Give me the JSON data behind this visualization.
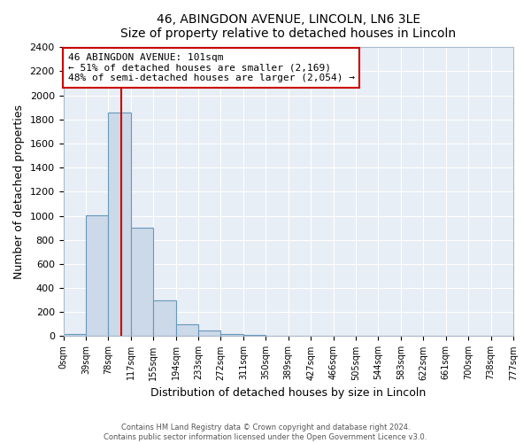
{
  "title": "46, ABINGDON AVENUE, LINCOLN, LN6 3LE",
  "subtitle": "Size of property relative to detached houses in Lincoln",
  "xlabel": "Distribution of detached houses by size in Lincoln",
  "ylabel": "Number of detached properties",
  "bar_values": [
    20,
    1005,
    1860,
    900,
    300,
    100,
    45,
    20,
    10,
    0,
    0,
    0,
    0,
    0,
    0,
    0,
    0,
    0,
    0,
    0
  ],
  "bin_labels": [
    "0sqm",
    "39sqm",
    "78sqm",
    "117sqm",
    "155sqm",
    "194sqm",
    "233sqm",
    "272sqm",
    "311sqm",
    "350sqm",
    "389sqm",
    "427sqm",
    "466sqm",
    "505sqm",
    "544sqm",
    "583sqm",
    "622sqm",
    "661sqm",
    "700sqm",
    "738sqm",
    "777sqm"
  ],
  "bar_color": "#ccd9e8",
  "bar_edge_color": "#6699bb",
  "property_line_color": "#cc0000",
  "annotation_title": "46 ABINGDON AVENUE: 101sqm",
  "annotation_line1": "← 51% of detached houses are smaller (2,169)",
  "annotation_line2": "48% of semi-detached houses are larger (2,054) →",
  "annotation_box_color": "#cc0000",
  "ylim": [
    0,
    2400
  ],
  "yticks": [
    0,
    200,
    400,
    600,
    800,
    1000,
    1200,
    1400,
    1600,
    1800,
    2000,
    2200,
    2400
  ],
  "axes_bg_color": "#e8eef5",
  "grid_color": "#ffffff",
  "footer_line1": "Contains HM Land Registry data © Crown copyright and database right 2024.",
  "footer_line2": "Contains public sector information licensed under the Open Government Licence v3.0."
}
